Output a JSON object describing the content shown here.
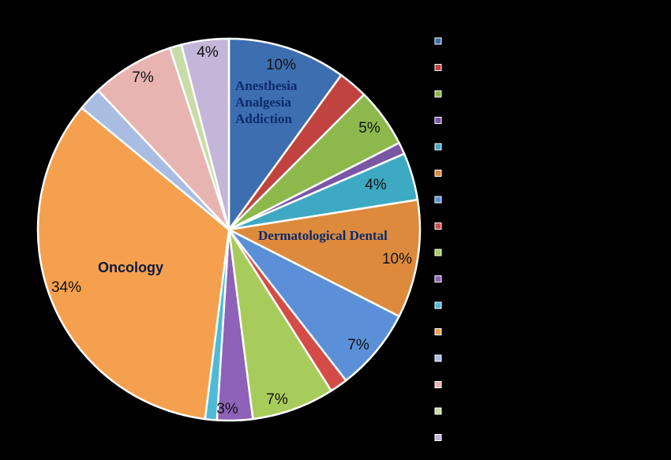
{
  "chart_data": {
    "type": "pie",
    "categories": [
      "Anesthesia Analgesia Addiction",
      "",
      "",
      "",
      "",
      "Dermatological Dental",
      "",
      "",
      "",
      "",
      "",
      "Oncology",
      "",
      "",
      "",
      ""
    ],
    "values": [
      10,
      2.5,
      5,
      1,
      4,
      10,
      7,
      1.5,
      7,
      3,
      1,
      34,
      2,
      7,
      1,
      4
    ],
    "value_labels": [
      "10%",
      "",
      "5%",
      "",
      "4%",
      "10%",
      "7%",
      "",
      "7%",
      "3%",
      "",
      "34%",
      "",
      "7%",
      "",
      "4%"
    ],
    "colors": [
      "#3d6eb0",
      "#c0433f",
      "#8db94c",
      "#7a56a6",
      "#3ea9c2",
      "#de8a3c",
      "#5b90d8",
      "#d54b46",
      "#a8cc5c",
      "#8e62b8",
      "#4fbad6",
      "#f5a04e",
      "#a9bde3",
      "#e8b4b2",
      "#c7dca6",
      "#c3b6d8"
    ],
    "legend_placement": "right",
    "start_angle_deg": 0,
    "direction": "clockwise"
  }
}
